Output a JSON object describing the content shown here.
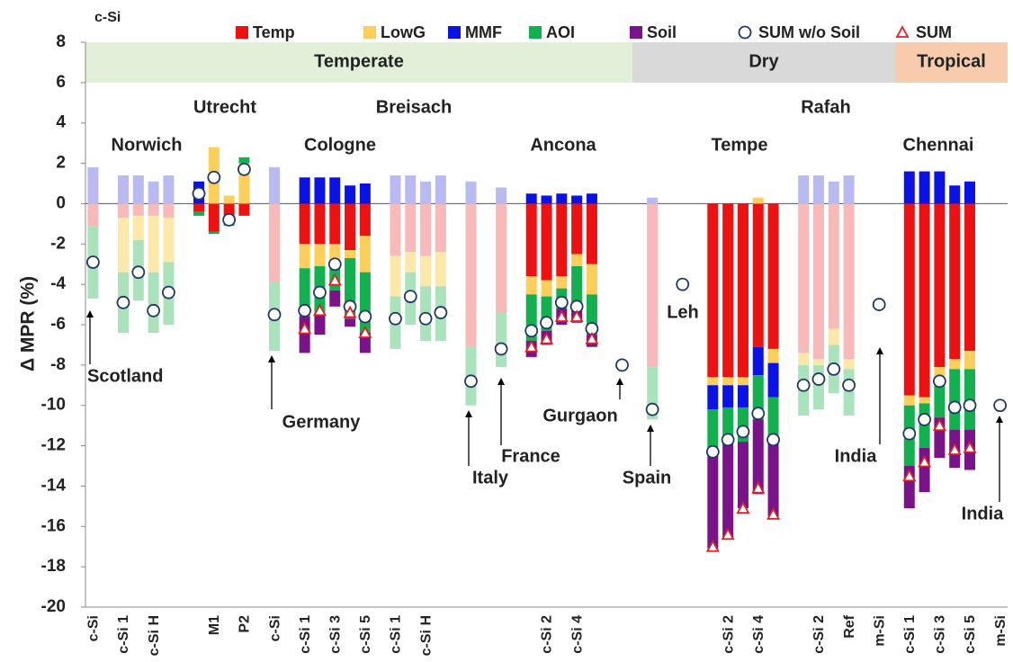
{
  "chart_data": {
    "type": "stacked-bar",
    "title": "c-Si",
    "y_label": "Δ MPR (%)",
    "ylim": [
      -20,
      8
    ],
    "yticks": [
      -20,
      -18,
      -16,
      -14,
      -12,
      -10,
      -8,
      -6,
      -4,
      -2,
      0,
      2,
      4,
      6,
      8
    ],
    "grid": false,
    "legend": "top",
    "categories": [
      "c-Si",
      null,
      "c-Si 1",
      null,
      "c-Si H",
      null,
      null,
      null,
      "M1",
      null,
      "P2",
      null,
      "c-Si",
      null,
      "c-Si 1",
      null,
      "c-Si 3",
      null,
      "c-Si 5",
      null,
      "c-Si 1",
      null,
      "c-Si H",
      null,
      null,
      null,
      null,
      null,
      null,
      null,
      "c-Si 2",
      null,
      "c-Si 4",
      null,
      null,
      null,
      null,
      null,
      null,
      null,
      null,
      null,
      "c-Si 2",
      null,
      "c-Si 4",
      null,
      null,
      null,
      "c-Si 2",
      null,
      "Ref",
      null,
      "m-Si",
      null,
      "c-Si 1",
      null,
      "c-Si 3",
      null,
      "c-Si 5",
      null,
      "m-Si"
    ],
    "faded": [
      true,
      false,
      true,
      true,
      true,
      true,
      false,
      false,
      false,
      false,
      false,
      false,
      true,
      false,
      false,
      false,
      false,
      false,
      false,
      false,
      true,
      true,
      true,
      true,
      false,
      true,
      false,
      true,
      false,
      false,
      false,
      false,
      false,
      false,
      false,
      false,
      false,
      true,
      false,
      false,
      false,
      false,
      false,
      false,
      false,
      false,
      false,
      true,
      true,
      true,
      true,
      false,
      false,
      false,
      false,
      false,
      false,
      false,
      false,
      false,
      false
    ],
    "series": [
      {
        "name": "Temp",
        "color": "#ee1111",
        "faded_color": "#f8b9b9",
        "values": [
          -1.1,
          null,
          -0.7,
          -0.6,
          -0.6,
          -0.7,
          null,
          -0.4,
          -1.4,
          -1.0,
          -0.6,
          null,
          -3.9,
          null,
          -2.0,
          -2.0,
          -2.0,
          -2.3,
          -1.6,
          null,
          -2.6,
          -2.4,
          -2.6,
          -2.4,
          null,
          -7.1,
          null,
          -5.4,
          null,
          -3.6,
          -3.8,
          -3.6,
          -2.5,
          -3.0,
          null,
          null,
          null,
          -8.1,
          null,
          null,
          null,
          -8.6,
          -8.6,
          -8.6,
          -7.1,
          -7.2,
          null,
          -7.4,
          -7.7,
          -6.2,
          -7.7,
          null,
          null,
          null,
          -9.5,
          -9.6,
          -8.1,
          -7.7,
          -7.3,
          null,
          null
        ]
      },
      {
        "name": "LowG",
        "color": "#fccf5a",
        "faded_color": "#fce8a8",
        "values": [
          null,
          null,
          -2.7,
          -1.2,
          -2.8,
          -2.2,
          null,
          null,
          2.8,
          0.4,
          2.0,
          null,
          null,
          null,
          -1.2,
          -1.1,
          -0.8,
          -0.4,
          -1.8,
          null,
          -2.0,
          -1.0,
          -1.5,
          -1.7,
          null,
          null,
          null,
          null,
          null,
          -0.9,
          -0.8,
          -0.6,
          -0.6,
          -1.5,
          null,
          null,
          null,
          null,
          null,
          null,
          null,
          -0.4,
          -0.4,
          -0.4,
          0.3,
          -0.7,
          null,
          -0.6,
          -0.3,
          -0.8,
          -0.5,
          null,
          null,
          null,
          -0.5,
          -0.3,
          -0.9,
          -0.5,
          -0.9,
          null,
          null
        ]
      },
      {
        "name": "MMF",
        "color": "#0a12e6",
        "faded_color": "#babaf2",
        "values": [
          1.8,
          null,
          1.4,
          1.4,
          1.1,
          1.4,
          null,
          1.1,
          null,
          null,
          null,
          null,
          1.8,
          null,
          1.3,
          1.3,
          1.3,
          0.9,
          1.0,
          null,
          1.4,
          1.4,
          1.1,
          1.4,
          null,
          1.1,
          null,
          0.8,
          null,
          0.5,
          0.4,
          0.5,
          0.4,
          0.5,
          null,
          null,
          null,
          0.3,
          null,
          null,
          null,
          -1.2,
          -1.1,
          -1.1,
          -1.4,
          -1.7,
          null,
          1.4,
          1.4,
          1.1,
          1.4,
          null,
          null,
          null,
          1.6,
          1.6,
          1.6,
          0.9,
          1.1,
          null,
          null
        ]
      },
      {
        "name": "AOI",
        "color": "#12b04e",
        "faded_color": "#a9e2bb",
        "values": [
          -3.6,
          null,
          -3.0,
          -3.0,
          -3.0,
          -3.1,
          null,
          -0.2,
          -0.1,
          -0.1,
          0.3,
          null,
          -3.4,
          null,
          -2.4,
          -2.4,
          -1.5,
          -3.0,
          -3.0,
          null,
          -2.6,
          -2.6,
          -2.7,
          -2.7,
          null,
          -2.9,
          null,
          -2.7,
          null,
          -2.3,
          -1.7,
          -1.0,
          -2.2,
          -2.0,
          null,
          null,
          null,
          -2.6,
          null,
          null,
          null,
          -2.1,
          -1.7,
          -1.7,
          -2.2,
          -2.2,
          null,
          -2.5,
          -2.2,
          -2.4,
          -2.3,
          null,
          null,
          null,
          -3.0,
          -2.2,
          -1.6,
          -3.0,
          -3.0,
          null,
          null
        ]
      },
      {
        "name": "Soil",
        "color": "#7a1389",
        "faded_color": "#d6b0dc",
        "values": [
          null,
          null,
          null,
          null,
          null,
          null,
          null,
          null,
          null,
          null,
          null,
          null,
          null,
          null,
          -1.8,
          -1.0,
          -0.8,
          -0.4,
          -1.0,
          null,
          null,
          null,
          null,
          null,
          null,
          null,
          null,
          null,
          null,
          -0.8,
          -0.7,
          -0.8,
          -0.6,
          -0.6,
          null,
          null,
          null,
          null,
          null,
          null,
          null,
          -4.8,
          -4.8,
          -3.3,
          -3.7,
          -3.7,
          null,
          null,
          null,
          null,
          null,
          null,
          null,
          null,
          -2.1,
          -2.2,
          -2.0,
          -1.9,
          -2.0,
          null,
          null
        ]
      }
    ],
    "points": [
      {
        "name": "SUM w/o Soil",
        "marker": "circle",
        "color": "#1f3864",
        "values": [
          -2.9,
          null,
          -4.9,
          -3.4,
          -5.3,
          -4.4,
          null,
          0.5,
          1.3,
          -0.8,
          1.7,
          null,
          -5.5,
          null,
          -5.3,
          -4.4,
          -3.0,
          -5.1,
          -5.6,
          null,
          -5.7,
          -4.6,
          -5.7,
          -5.4,
          null,
          -8.8,
          null,
          -7.2,
          null,
          -6.3,
          -5.9,
          -4.9,
          -5.1,
          -6.2,
          null,
          -8.0,
          null,
          -10.2,
          null,
          -4.0,
          null,
          -12.3,
          -11.7,
          -11.3,
          -10.4,
          -11.7,
          null,
          -9.0,
          -8.7,
          -8.2,
          -9.0,
          null,
          -5.0,
          null,
          -11.4,
          -10.7,
          -8.8,
          -10.1,
          -10.0,
          null,
          -10.0
        ]
      },
      {
        "name": "SUM",
        "marker": "triangle",
        "color": "#e02020",
        "values": [
          null,
          null,
          null,
          null,
          null,
          null,
          null,
          null,
          null,
          null,
          null,
          null,
          null,
          null,
          -6.2,
          -5.3,
          -3.8,
          -5.4,
          -6.4,
          null,
          null,
          null,
          null,
          null,
          null,
          null,
          null,
          null,
          null,
          -7.1,
          -6.7,
          -5.6,
          -5.6,
          -6.7,
          null,
          null,
          null,
          null,
          null,
          null,
          null,
          -17.0,
          -16.4,
          -15.1,
          -14.1,
          -15.4,
          null,
          null,
          null,
          null,
          null,
          null,
          null,
          null,
          -13.5,
          -12.8,
          -11.0,
          -12.2,
          -12.1,
          null,
          null
        ]
      }
    ],
    "regions": [
      {
        "label": "Temperate",
        "color": "#e2efd9"
      },
      {
        "label": "Dry",
        "color": "#d9d9d9"
      },
      {
        "label": "Tropical",
        "color": "#f8cbad"
      }
    ],
    "annotations": [
      "Norwich",
      "Utrecht",
      "Breisach",
      "Cologne",
      "Ancona",
      "Rafah",
      "Tempe",
      "Chennai",
      "Scotland",
      "Germany",
      "Italy",
      "France",
      "Gurgaon",
      "Spain",
      "Leh",
      "India",
      "India"
    ]
  }
}
